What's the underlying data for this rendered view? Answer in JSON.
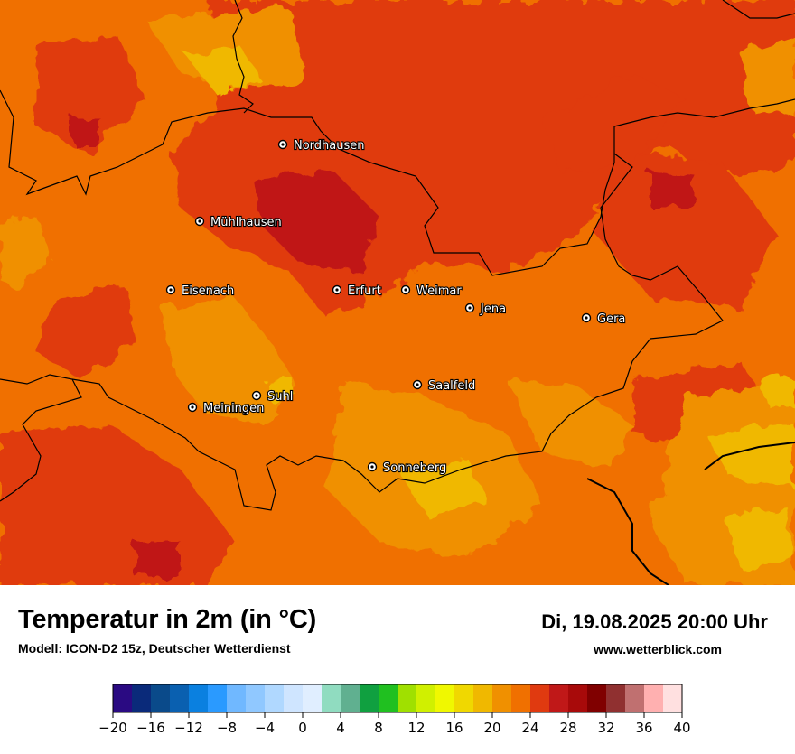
{
  "map": {
    "title": "Temperatur in 2m (in °C)",
    "model": "Modell: ICON-D2 15z, Deutscher Wetterdienst",
    "datetime": "Di, 19.08.2025 20:00 Uhr",
    "website": "www.wetterblick.com",
    "cities": [
      {
        "name": "Nordhausen"
      },
      {
        "name": "Mühlhausen"
      },
      {
        "name": "Eisenach"
      },
      {
        "name": "Erfurt"
      },
      {
        "name": "Weimar"
      },
      {
        "name": "Jena"
      },
      {
        "name": "Gera"
      },
      {
        "name": "Saalfeld"
      },
      {
        "name": "Suhl"
      },
      {
        "name": "Meiningen"
      },
      {
        "name": "Sonneberg"
      }
    ]
  },
  "legend": {
    "min": -20,
    "max": 40,
    "step": 2,
    "ticks": [
      "−20",
      "−16",
      "−12",
      "−8",
      "−4",
      "0",
      "4",
      "8",
      "12",
      "16",
      "20",
      "24",
      "28",
      "32",
      "36",
      "40"
    ],
    "colors": [
      "#2a0a82",
      "#0a2a7a",
      "#0a4a8a",
      "#0a60b0",
      "#0a80e0",
      "#2a9aff",
      "#70b8ff",
      "#90c8ff",
      "#b0d8ff",
      "#cfe5ff",
      "#e0eeff",
      "#90dcc0",
      "#60b090",
      "#10a040",
      "#20c020",
      "#a0e000",
      "#d0f000",
      "#f0f800",
      "#f0d800",
      "#f0b800",
      "#f09000",
      "#f07000",
      "#e03a10",
      "#c01818",
      "#a80a0a",
      "#800000",
      "#903030",
      "#c07070",
      "#ffb0b0",
      "#ffe0e0"
    ]
  }
}
